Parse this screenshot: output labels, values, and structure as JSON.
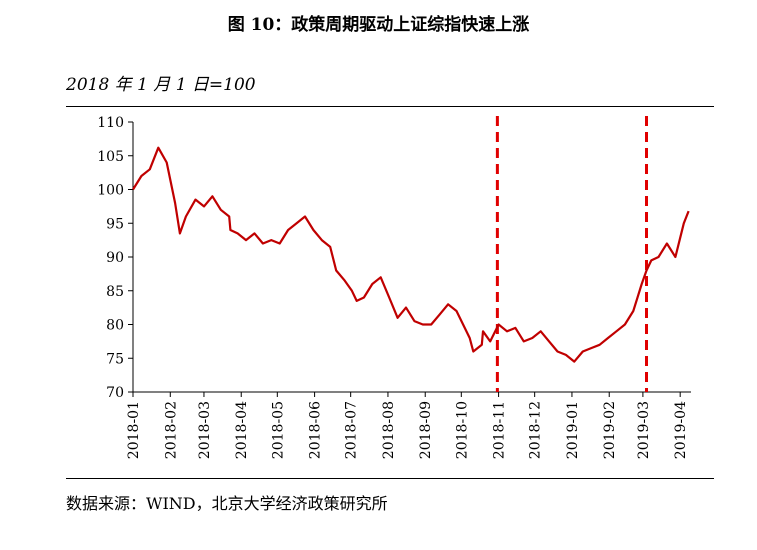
{
  "title": "图 10：政策周期驱动上证综指快速上涨",
  "subtitle": "2018 年 1 月 1 日=100",
  "source": "数据来源：WIND，北京大学经济政策研究所",
  "chart_data": {
    "type": "line",
    "title": "图 10：政策周期驱动上证综指快速上涨",
    "xlabel": "",
    "ylabel": "2018 年 1 月 1 日=100",
    "ylim": [
      70,
      110
    ],
    "yticks": [
      70,
      75,
      80,
      85,
      90,
      95,
      100,
      105,
      110
    ],
    "xticks": [
      "2018-01",
      "2018-02",
      "2018-03",
      "2018-04",
      "2018-05",
      "2018-06",
      "2018-07",
      "2018-08",
      "2018-09",
      "2018-10",
      "2018-11",
      "2018-12",
      "2019-01",
      "2019-02",
      "2019-03",
      "2019-04"
    ],
    "grid": false,
    "line_color": "#c00000",
    "marker_lines": [
      {
        "x": "2018-10-31",
        "style": "dashed",
        "color": "#e00000"
      },
      {
        "x": "2019-03-04",
        "style": "dashed",
        "color": "#e00000"
      }
    ],
    "series": [
      {
        "x": [
          "2018-01-01",
          "2018-01-08",
          "2018-01-15",
          "2018-01-22",
          "2018-01-29",
          "2018-02-05",
          "2018-02-09",
          "2018-02-14",
          "2018-02-22",
          "2018-03-01",
          "2018-03-08",
          "2018-03-15",
          "2018-03-22",
          "2018-03-23",
          "2018-03-29",
          "2018-04-05",
          "2018-04-12",
          "2018-04-19",
          "2018-04-26",
          "2018-05-03",
          "2018-05-10",
          "2018-05-17",
          "2018-05-24",
          "2018-05-31",
          "2018-06-07",
          "2018-06-14",
          "2018-06-19",
          "2018-06-26",
          "2018-07-02",
          "2018-07-06",
          "2018-07-12",
          "2018-07-19",
          "2018-07-26",
          "2018-08-02",
          "2018-08-09",
          "2018-08-16",
          "2018-08-23",
          "2018-08-30",
          "2018-09-06",
          "2018-09-13",
          "2018-09-20",
          "2018-09-27",
          "2018-10-08",
          "2018-10-11",
          "2018-10-18",
          "2018-10-19",
          "2018-10-25",
          "2018-11-01",
          "2018-11-08",
          "2018-11-15",
          "2018-11-22",
          "2018-11-29",
          "2018-12-06",
          "2018-12-13",
          "2018-12-20",
          "2018-12-27",
          "2019-01-03",
          "2019-01-10",
          "2019-01-17",
          "2019-01-24",
          "2019-01-31",
          "2019-02-07",
          "2019-02-14",
          "2019-02-21",
          "2019-02-28",
          "2019-03-04",
          "2019-03-08",
          "2019-03-14",
          "2019-03-21",
          "2019-03-28",
          "2019-04-04",
          "2019-04-08"
        ],
        "values": [
          100,
          102,
          103,
          106.2,
          104,
          98,
          93.5,
          96,
          98.5,
          97.5,
          99,
          97,
          96,
          94,
          93.5,
          92.5,
          93.5,
          92,
          92.5,
          92,
          94,
          95,
          96,
          94,
          92.5,
          91.5,
          88,
          86.5,
          85,
          83.5,
          84,
          86,
          87,
          84,
          81,
          82.5,
          80.5,
          80,
          80,
          81.5,
          83,
          82,
          78,
          76,
          77,
          79,
          77.5,
          80,
          79,
          79.5,
          77.5,
          78,
          79,
          77.5,
          76,
          75.5,
          74.5,
          76,
          76.5,
          77,
          78,
          79,
          80,
          82,
          86,
          88,
          89.5,
          90,
          92,
          90,
          95,
          96.8
        ]
      }
    ]
  }
}
